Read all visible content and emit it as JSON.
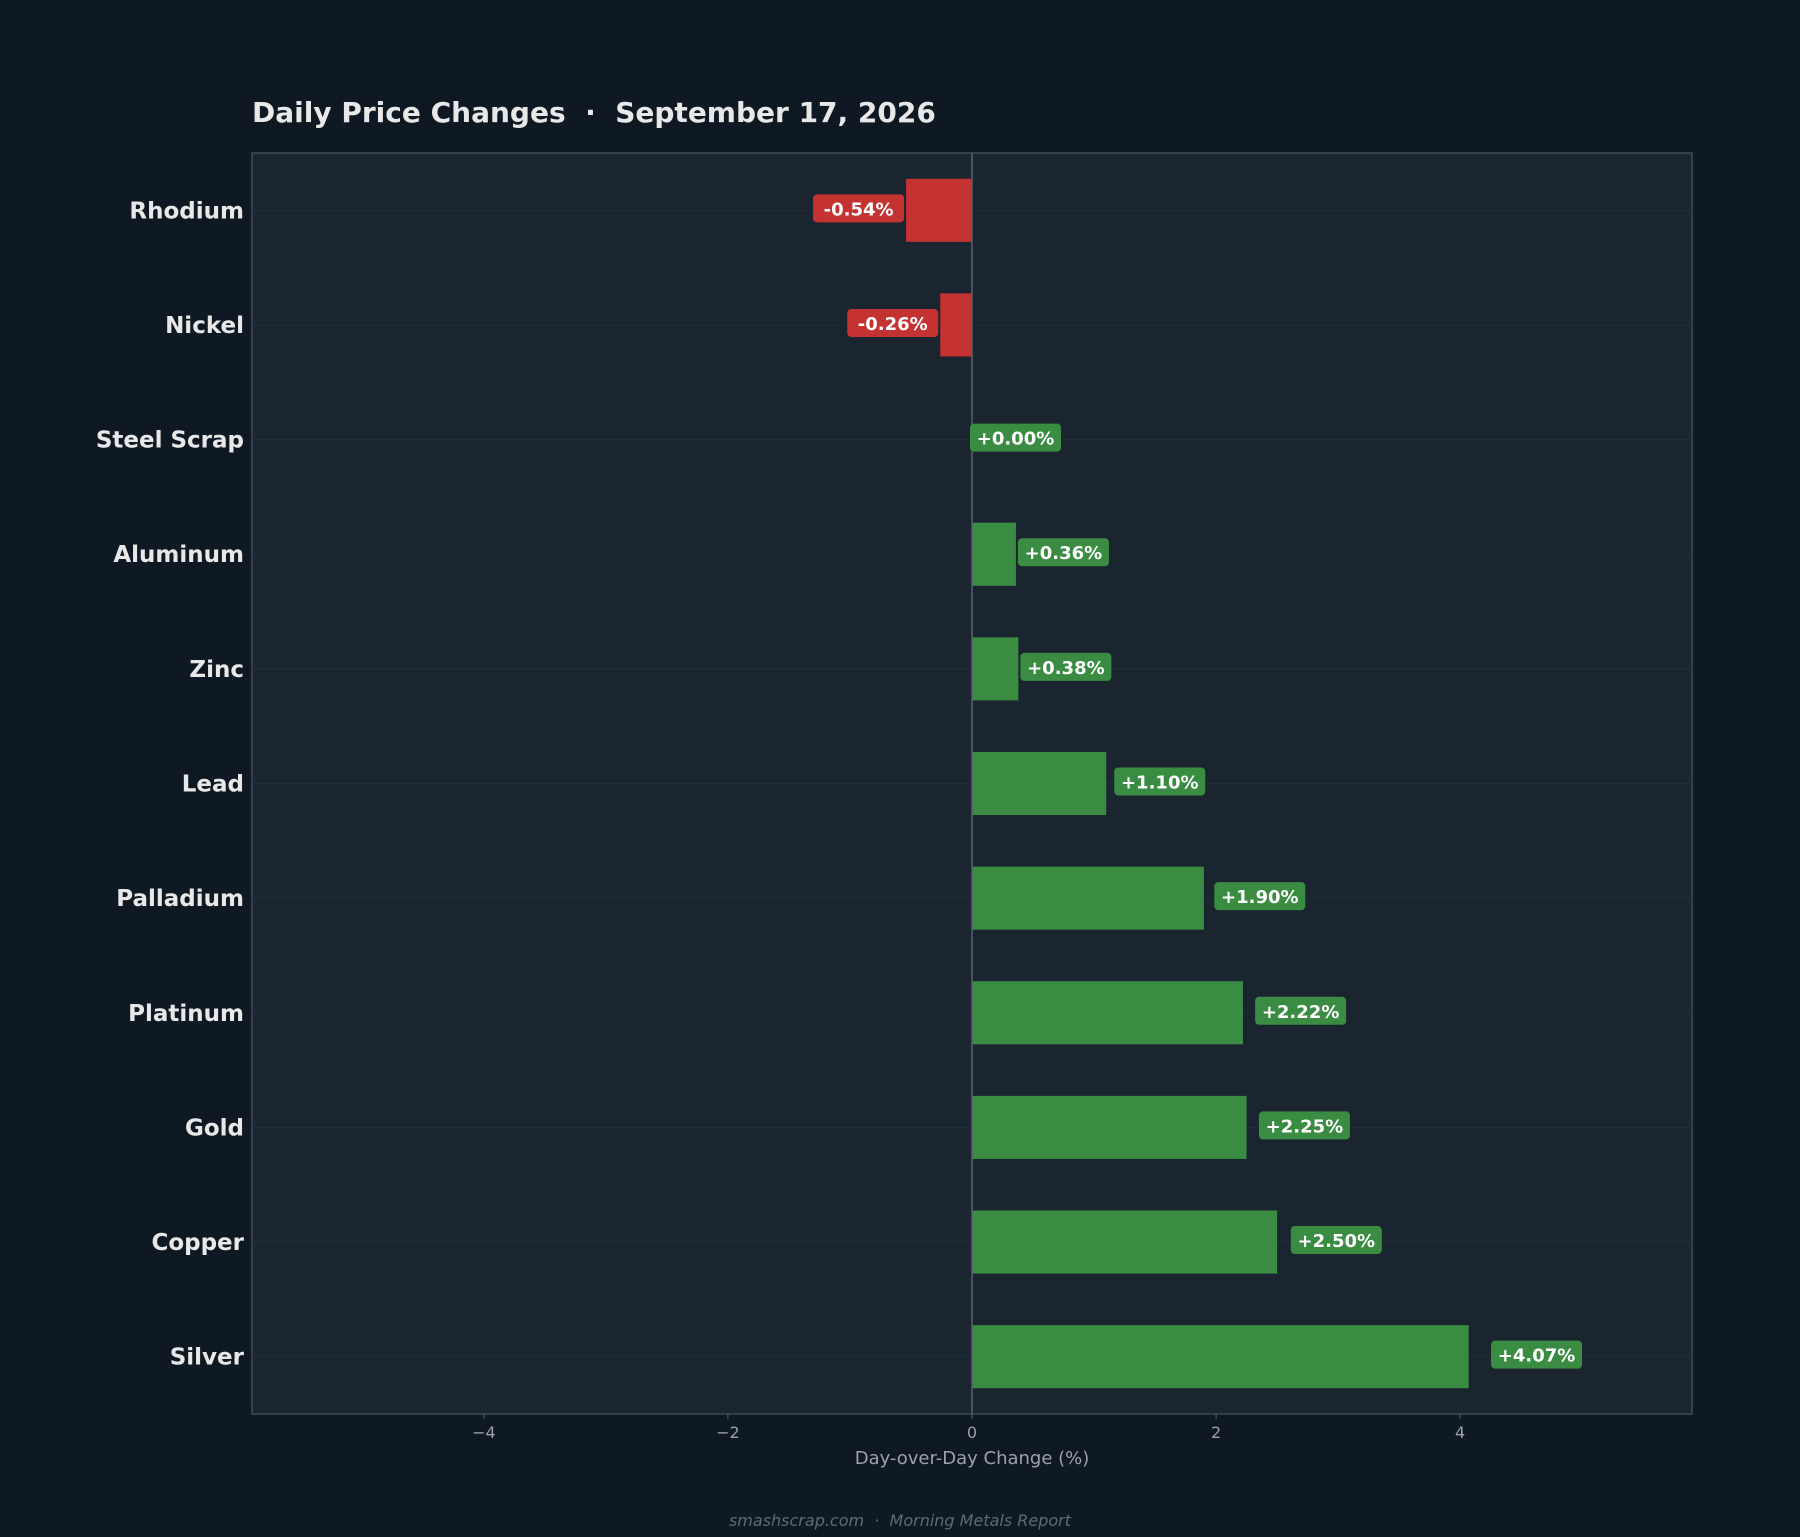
{
  "chart_data": {
    "type": "bar",
    "orientation": "horizontal",
    "title": "Daily Price Changes  ·  September 17, 2026",
    "xlabel": "Day-over-Day Change (%)",
    "ylabel": "",
    "xlim": [
      -5.9,
      5.9
    ],
    "xticks": [
      -4,
      -2,
      0,
      2,
      4
    ],
    "xtick_labels": [
      "−4",
      "−2",
      "0",
      "2",
      "4"
    ],
    "grid": true,
    "categories": [
      "Rhodium",
      "Nickel",
      "Steel Scrap",
      "Aluminum",
      "Zinc",
      "Lead",
      "Palladium",
      "Platinum",
      "Gold",
      "Copper",
      "Silver"
    ],
    "values": [
      -0.54,
      -0.26,
      0.0,
      0.36,
      0.38,
      1.1,
      1.9,
      2.22,
      2.25,
      2.5,
      4.07
    ],
    "data_labels": [
      "-0.54%",
      "-0.26%",
      "+0.00%",
      "+0.36%",
      "+0.38%",
      "+1.10%",
      "+1.90%",
      "+2.22%",
      "+2.25%",
      "+2.50%",
      "+4.07%"
    ],
    "footer": "smashscrap.com  ·  Morning Metals Report",
    "colors": {
      "page_background": "#0f1923",
      "plot_background": "#1b2530",
      "plot_border": "#3e4b57",
      "positive": "#3b8c43",
      "negative": "#c53232",
      "text": "#e8e8e8",
      "tick_text": "#9aa3ac",
      "footer_text": "#5f6a74"
    }
  }
}
